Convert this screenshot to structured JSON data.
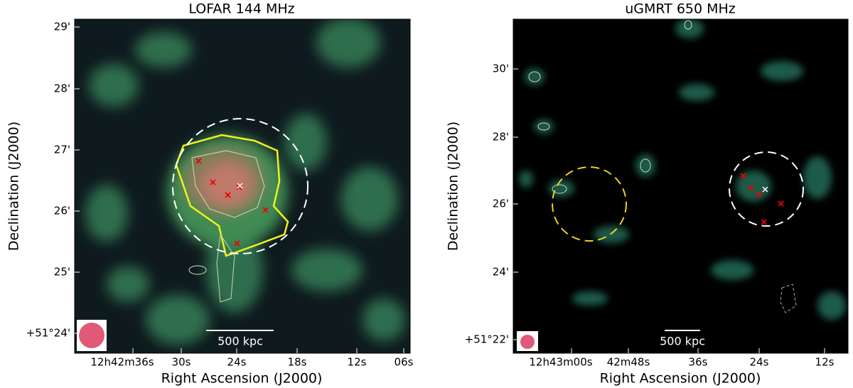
{
  "panels": [
    {
      "title": "LOFAR 144 MHz",
      "x_label": "Right Ascension (J2000)",
      "y_label": "Declination (J2000)",
      "x_ticks": [
        "12h42m36s",
        "30s",
        "24s",
        "18s",
        "12s",
        "06s"
      ],
      "y_ticks": [
        "29'",
        "28'",
        "27'",
        "26'",
        "25'",
        "+51°24'"
      ],
      "scale_bar": "500 kpc"
    },
    {
      "title": "uGMRT 650 MHz",
      "x_label": "Right Ascension (J2000)",
      "y_label": "Declination (J2000)",
      "x_ticks": [
        "12h43m00s",
        "42m48s",
        "36s",
        "24s",
        "12s"
      ],
      "y_ticks": [
        "30'",
        "28'",
        "26'",
        "24'",
        "+51°22'"
      ],
      "scale_bar": "500 kpc"
    }
  ]
}
